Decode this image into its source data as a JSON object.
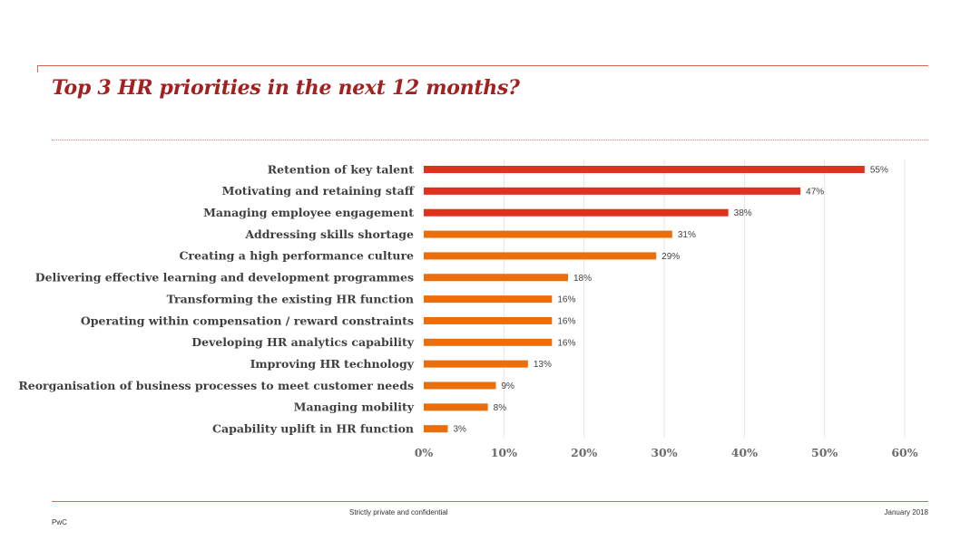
{
  "slide": {
    "title": "Top 3 HR priorities in the next 12 months?",
    "footer_center": "Strictly private and confidential",
    "footer_date": "January 2018",
    "footer_brand": "PwC"
  },
  "colors": {
    "accent": "#a32020",
    "bar_top": "#e0301e",
    "bar_other": "#eb6e0c",
    "rule": "#d4694f"
  },
  "chart_data": {
    "type": "bar",
    "orientation": "horizontal",
    "categories": [
      "Retention of key talent",
      "Motivating and retaining staff",
      "Managing employee engagement",
      "Addressing skills shortage",
      "Creating a high performance culture",
      "Delivering effective learning and development programmes",
      "Transforming the existing HR function",
      "Operating within compensation / reward constraints",
      "Developing HR analytics capability",
      "Improving HR technology",
      "Reorganisation of business processes to meet customer needs",
      "Managing mobility",
      "Capability uplift in HR function"
    ],
    "values": [
      55,
      47,
      38,
      31,
      29,
      18,
      16,
      16,
      16,
      13,
      9,
      8,
      3
    ],
    "data_labels": [
      "55%",
      "47%",
      "38%",
      "31%",
      "29%",
      "18%",
      "16%",
      "16%",
      "16%",
      "13%",
      "9%",
      "8%",
      "3%"
    ],
    "xlim": [
      0,
      60
    ],
    "xticks": [
      0,
      10,
      20,
      30,
      40,
      50,
      60
    ],
    "xtick_labels": [
      "0%",
      "10%",
      "20%",
      "30%",
      "40%",
      "50%",
      "60%"
    ],
    "highlight_top_n": 3,
    "grid": true,
    "title": "",
    "xlabel": "",
    "ylabel": ""
  }
}
